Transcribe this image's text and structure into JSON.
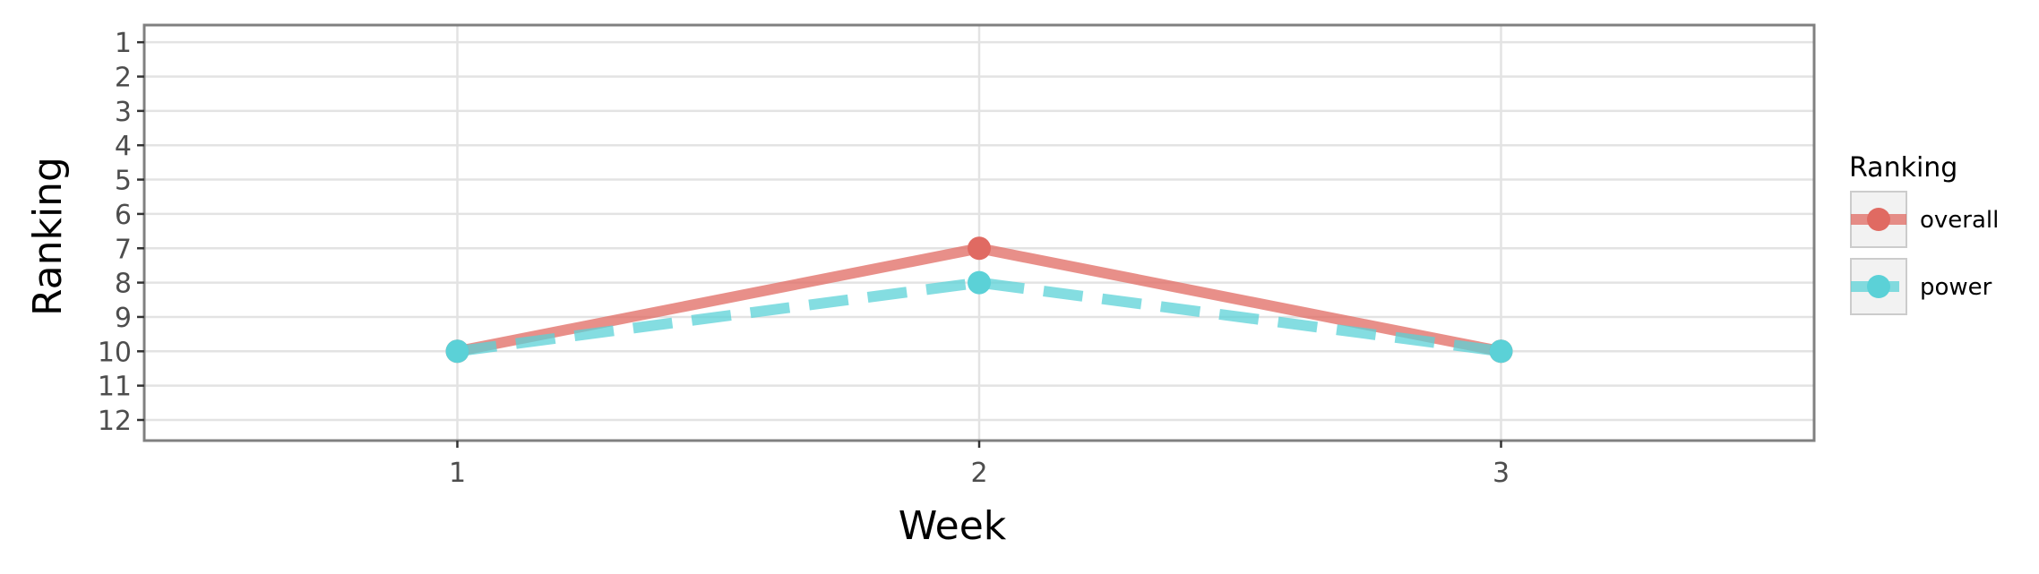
{
  "chart_data": {
    "type": "line",
    "xlabel": "Week",
    "ylabel": "Ranking",
    "x": [
      1,
      2,
      3
    ],
    "x_ticks": [
      "1",
      "2",
      "3"
    ],
    "xlim": [
      0.4,
      3.6
    ],
    "y_ticks": [
      "1",
      "2",
      "3",
      "4",
      "5",
      "6",
      "7",
      "8",
      "9",
      "10",
      "11",
      "12"
    ],
    "ylim": [
      0.5,
      12.6
    ],
    "y_reversed": true,
    "grid": true,
    "legend": {
      "title": "Ranking",
      "placement": "right"
    },
    "series": [
      {
        "name": "overall",
        "values": [
          10,
          7,
          10
        ],
        "color": "#e06a62",
        "line_style": "solid"
      },
      {
        "name": "power",
        "values": [
          10,
          8,
          10
        ],
        "color": "#5bd1d7",
        "line_style": "dashed"
      }
    ]
  }
}
